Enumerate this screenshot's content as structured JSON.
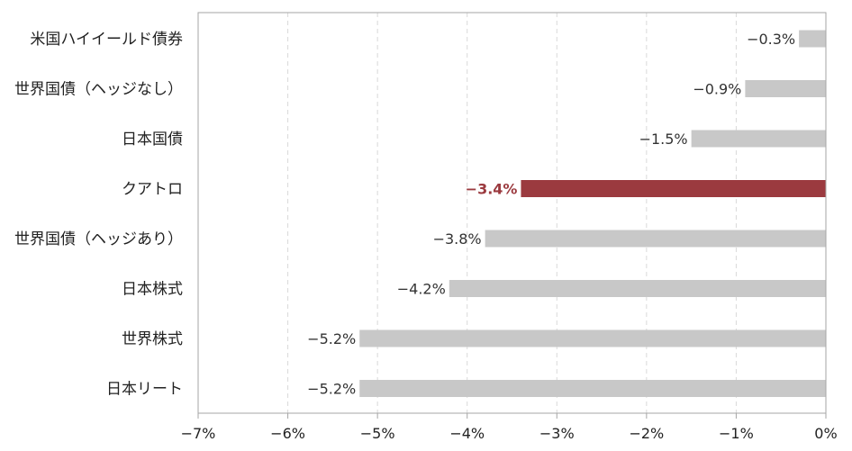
{
  "chart_data": {
    "type": "bar",
    "orientation": "horizontal",
    "categories": [
      "米国ハイイールド債券",
      "世界国債（ヘッジなし）",
      "日本国債",
      "クアトロ",
      "世界国債（ヘッジあり）",
      "日本株式",
      "世界株式",
      "日本リート"
    ],
    "values": [
      -0.3,
      -0.9,
      -1.5,
      -3.4,
      -3.8,
      -4.2,
      -5.2,
      -5.2
    ],
    "data_labels": [
      "−0.3%",
      "−0.9%",
      "−1.5%",
      "−3.4%",
      "−3.8%",
      "−4.2%",
      "−5.2%",
      "−5.2%"
    ],
    "highlight_index": 3,
    "xlim": [
      -7,
      0
    ],
    "x_ticks": [
      -7,
      -6,
      -5,
      -4,
      -3,
      -2,
      -1,
      0
    ],
    "x_tick_labels": [
      "−7%",
      "−6%",
      "−5%",
      "−4%",
      "−3%",
      "−2%",
      "−1%",
      "0%"
    ],
    "grid": "vertical dashed",
    "legend": "none",
    "title": "",
    "xlabel": "",
    "ylabel": "",
    "colors": {
      "bar": "#c8c8c8",
      "highlight": "#9b3a3f",
      "grid": "#d9d9d9",
      "axis": "#a6a6a6"
    }
  }
}
